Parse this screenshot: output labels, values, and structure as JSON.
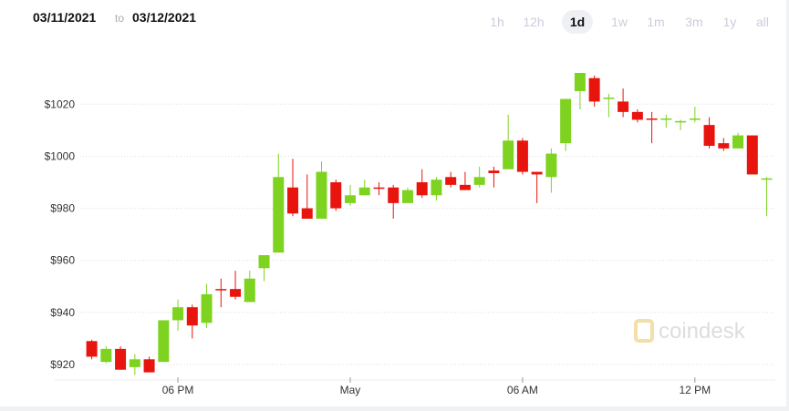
{
  "header": {
    "date_from": "03/11/2021",
    "separator": "to",
    "date_to": "03/12/2021",
    "ranges": [
      "1h",
      "12h",
      "1d",
      "1w",
      "1m",
      "3m",
      "1y",
      "all"
    ],
    "active_range": "1d"
  },
  "watermark": "coindesk",
  "chart_data": {
    "type": "candlestick",
    "x": [
      15,
      15.5,
      16,
      16.5,
      17,
      17.5,
      18,
      18.5,
      19,
      19.5,
      20,
      20.5,
      21,
      21.5,
      22,
      22.5,
      23,
      23.5,
      24,
      24.5,
      25,
      25.5,
      26,
      26.5,
      27,
      27.5,
      28,
      28.5,
      29,
      29.5,
      30,
      30.5,
      31,
      31.5,
      32,
      32.5,
      33,
      33.5,
      34,
      34.5,
      35,
      35.5,
      36,
      36.5,
      37,
      37.5,
      38,
      38.5
    ],
    "open": [
      929,
      921,
      926,
      919,
      922,
      921,
      937,
      942,
      936,
      949,
      949,
      944,
      957,
      963,
      988,
      980,
      976,
      990,
      982,
      985,
      988,
      988,
      982,
      990,
      985,
      992,
      989,
      989,
      994.5,
      995,
      1006,
      994,
      992,
      1005,
      1025,
      1030,
      1022,
      1021,
      1017,
      1014.5,
      1014,
      1013,
      1014,
      1012,
      1005,
      1003,
      1008,
      991
    ],
    "high": [
      929.5,
      927,
      927,
      924,
      923,
      937,
      945,
      943,
      951,
      953,
      956,
      956,
      962,
      1001,
      999,
      993,
      998,
      991,
      989,
      991,
      990,
      989,
      988,
      995,
      992,
      994,
      994,
      996,
      996,
      1016,
      1007,
      994,
      1003,
      1022,
      1032,
      1031,
      1024,
      1026,
      1018,
      1017,
      1016,
      1014,
      1019,
      1015,
      1007,
      1009,
      1008,
      992
    ],
    "low": [
      922,
      920.5,
      918,
      916,
      917,
      921,
      933,
      930,
      934,
      942,
      945,
      944,
      952,
      963,
      977,
      976,
      976,
      979,
      981,
      985,
      985,
      976,
      982,
      984,
      983,
      988,
      987,
      988,
      988,
      995,
      993,
      982,
      986,
      1002,
      1018,
      1019,
      1015,
      1015,
      1013,
      1005,
      1011,
      1010,
      1013,
      1003,
      1002,
      1003,
      993,
      977
    ],
    "close": [
      923,
      926,
      918,
      922,
      917,
      937,
      942,
      935,
      947,
      948.5,
      946,
      953,
      962,
      992,
      978,
      976,
      994,
      980,
      985,
      988,
      987.5,
      982,
      987,
      985,
      991,
      989,
      987,
      992,
      993.5,
      1006,
      994,
      993,
      1001,
      1022,
      1032,
      1021,
      1022.5,
      1017,
      1014,
      1014,
      1014.5,
      1013.5,
      1014.5,
      1004,
      1003,
      1008,
      993,
      991.5
    ],
    "up_color": "#7ed321",
    "down_color": "#e8140e",
    "xlim": [
      14.6,
      38.8
    ],
    "xticks": [
      {
        "value": 18,
        "label": "06 PM"
      },
      {
        "value": 24,
        "label": "May"
      },
      {
        "value": 30,
        "label": "06 AM"
      },
      {
        "value": 36,
        "label": "12 PM"
      }
    ],
    "ylim": [
      913,
      1039
    ],
    "yticks": [
      {
        "value": 920,
        "label": "$920"
      },
      {
        "value": 940,
        "label": "$940"
      },
      {
        "value": 960,
        "label": "$960"
      },
      {
        "value": 980,
        "label": "$980"
      },
      {
        "value": 1000,
        "label": "$1000"
      },
      {
        "value": 1020,
        "label": "$1020"
      }
    ],
    "grid": true
  }
}
